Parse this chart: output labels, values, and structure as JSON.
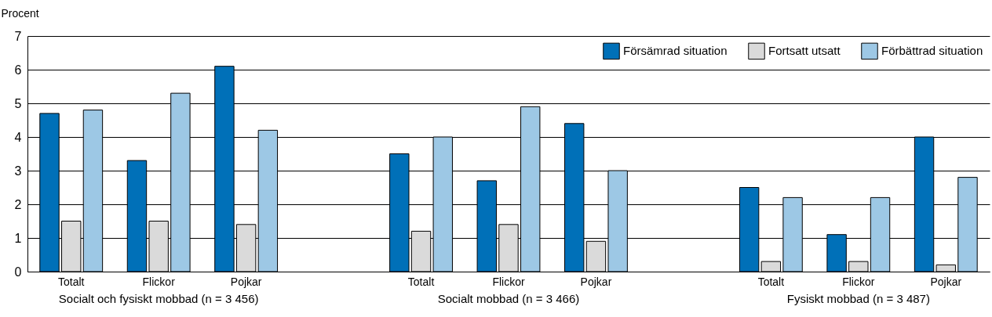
{
  "chart_data": {
    "type": "bar",
    "ylabel": "Procent",
    "categories": [
      "Totalt",
      "Flickor",
      "Pojkar",
      null,
      "Totalt",
      "Flickor",
      "Pojkar",
      null,
      "Totalt",
      "Flickor",
      "Pojkar"
    ],
    "series": [
      {
        "name": "Försämrad situation",
        "color": "#0070b8",
        "values": [
          4.7,
          3.3,
          6.1,
          null,
          3.5,
          2.7,
          4.4,
          null,
          2.5,
          1.1,
          4.0
        ]
      },
      {
        "name": "Fortsatt utsatt",
        "color": "#dadada",
        "values": [
          1.5,
          1.5,
          1.4,
          null,
          1.2,
          1.4,
          0.9,
          null,
          0.3,
          0.3,
          0.2
        ]
      },
      {
        "name": "Förbättrad situation",
        "color": "#9dc8e5",
        "values": [
          4.8,
          5.3,
          4.2,
          null,
          4.0,
          4.9,
          3.0,
          null,
          2.2,
          2.2,
          2.8
        ]
      }
    ],
    "annotations": [
      "Socialt och fysiskt mobbad (n = 3 456)",
      "Socialt mobbad (n = 3 466)",
      "Fysiskt mobbad (n = 3 487)"
    ],
    "ylim": [
      0,
      7
    ],
    "yticks": [
      0,
      1,
      2,
      3,
      4,
      5,
      6,
      7
    ],
    "grid": true,
    "legend": "top right"
  }
}
